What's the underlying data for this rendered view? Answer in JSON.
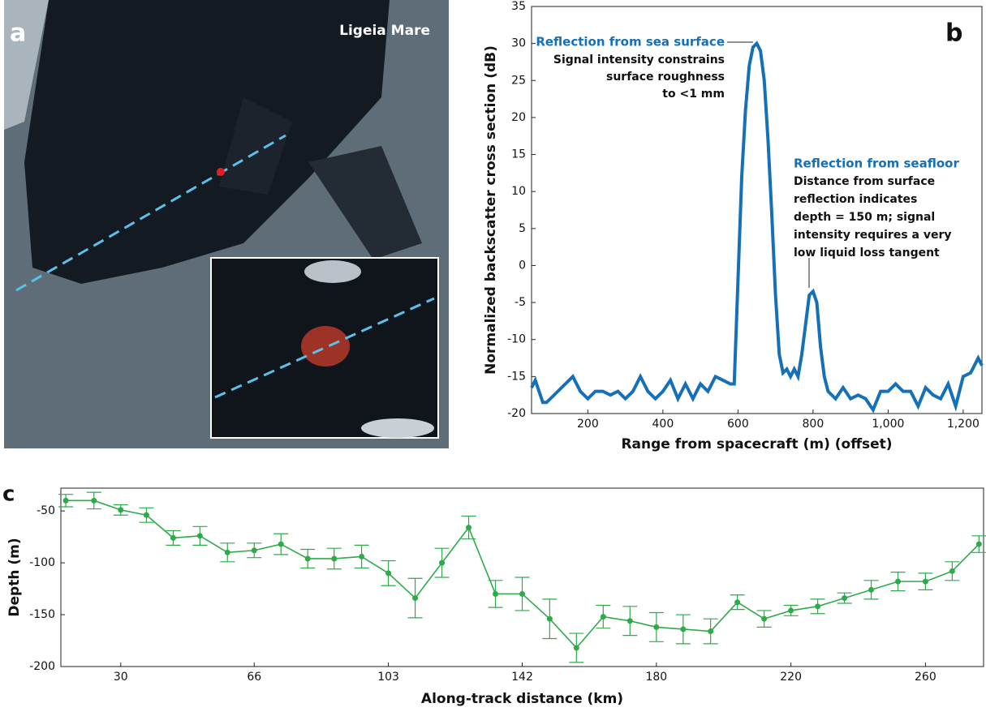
{
  "chart_data": [
    {
      "type": "image",
      "label": "a",
      "title": "Ligeia Mare"
    },
    {
      "type": "line",
      "label": "b",
      "xlabel": "Range from spacecraft (m) (offset)",
      "ylabel": "Normalized backscatter cross section (dB)",
      "xlim": [
        50,
        1250
      ],
      "ylim": [
        -20,
        35
      ],
      "xticks": [
        200,
        400,
        600,
        800,
        {
          "value": 1000,
          "label": "1,000"
        },
        {
          "value": 1200,
          "label": "1,200"
        }
      ],
      "yticks": [
        -20,
        -15,
        -10,
        -5,
        0,
        5,
        10,
        15,
        20,
        25,
        30,
        35
      ],
      "x": [
        50,
        60,
        70,
        80,
        90,
        100,
        120,
        140,
        160,
        180,
        200,
        220,
        240,
        260,
        280,
        300,
        320,
        340,
        360,
        380,
        400,
        420,
        440,
        460,
        480,
        500,
        520,
        540,
        560,
        580,
        590,
        600,
        610,
        620,
        630,
        640,
        650,
        660,
        670,
        680,
        690,
        700,
        710,
        720,
        730,
        740,
        750,
        760,
        770,
        780,
        790,
        800,
        810,
        820,
        830,
        840,
        860,
        880,
        900,
        920,
        940,
        960,
        980,
        1000,
        1020,
        1040,
        1060,
        1080,
        1100,
        1120,
        1140,
        1160,
        1180,
        1200,
        1220,
        1240,
        1250
      ],
      "series": [
        {
          "color": "#1670b8",
          "values": [
            -16.5,
            -15.5,
            -17,
            -18.5,
            -18.5,
            -18,
            -17,
            -16,
            -15,
            -17,
            -18,
            -17,
            -17,
            -17.5,
            -17,
            -18,
            -17,
            -15,
            -17,
            -18,
            -17,
            -15.5,
            -18,
            -16,
            -18,
            -16,
            -17,
            -15,
            -15.5,
            -16,
            -16,
            -2,
            12,
            21,
            27,
            29.5,
            30,
            29,
            25,
            17,
            7,
            -4,
            -12,
            -14.5,
            -14,
            -15,
            -14,
            -15,
            -12,
            -8,
            -4,
            -3.5,
            -5,
            -11,
            -15,
            -17,
            -18,
            -16.5,
            -18,
            -17.5,
            -18,
            -19.5,
            -17,
            -17,
            -16,
            -17,
            -17,
            -19,
            -16.5,
            -17.5,
            -18,
            -16,
            -19,
            -15,
            -14.5,
            -12.5,
            -13.5
          ]
        }
      ],
      "annotations": [
        {
          "title": "Reflection from sea surface",
          "lines": [
            "Signal intensity constrains",
            "surface roughness",
            "to <1 mm"
          ]
        },
        {
          "title": "Reflection from seafloor",
          "lines": [
            "Distance from surface",
            "reflection indicates",
            "depth = 150 m;  signal",
            "intensity requires a very",
            "low liquid loss tangent"
          ]
        }
      ]
    },
    {
      "type": "errorbar",
      "label": "c",
      "xlabel": "Along-track distance (km)",
      "ylabel": "Depth (m)",
      "xlim": [
        13,
        275
      ],
      "ylim": [
        -200,
        -28
      ],
      "xticks": [
        30,
        {
          "value": 67.9,
          "label": "66"
        },
        {
          "value": 106,
          "label": "103"
        },
        {
          "value": 144,
          "label": "142"
        },
        {
          "value": 182.1,
          "label": "180"
        },
        {
          "value": 220.3,
          "label": "220"
        },
        {
          "value": 258.5,
          "label": "260"
        }
      ],
      "yticks": [
        -200,
        -150,
        -100,
        -50
      ],
      "x": [
        14.4,
        22.4,
        30,
        37.3,
        44.9,
        52.5,
        60.3,
        67.9,
        75.5,
        83.1,
        90.6,
        98.4,
        106,
        113.6,
        121.2,
        128.8,
        136.4,
        144,
        151.8,
        159.4,
        167,
        174.6,
        182.1,
        189.7,
        197.5,
        205.1,
        212.7,
        220.3,
        227.9,
        235.5,
        243.1,
        250.7,
        258.5,
        266.1,
        273.7
      ],
      "series": [
        {
          "color": "#2eaa4a",
          "values": [
            -40,
            -40,
            -49,
            -54,
            -76,
            -74,
            -90,
            -88,
            -82,
            -96,
            -96,
            -94,
            -110,
            -134,
            -100,
            -66,
            -130,
            -130,
            -154,
            -182,
            -152,
            -156,
            -162,
            -164,
            -166,
            -138,
            -154,
            -146,
            -142,
            -134,
            -126,
            -118,
            -118,
            -108,
            -82
          ],
          "errors": [
            6,
            8,
            5,
            7,
            7,
            9,
            9,
            7,
            10,
            9,
            10,
            11,
            12,
            19,
            14,
            11,
            13,
            16,
            19,
            14,
            11,
            14,
            14,
            14,
            12,
            7,
            8,
            5,
            7,
            5,
            9,
            9,
            8,
            9,
            8
          ]
        }
      ]
    }
  ]
}
